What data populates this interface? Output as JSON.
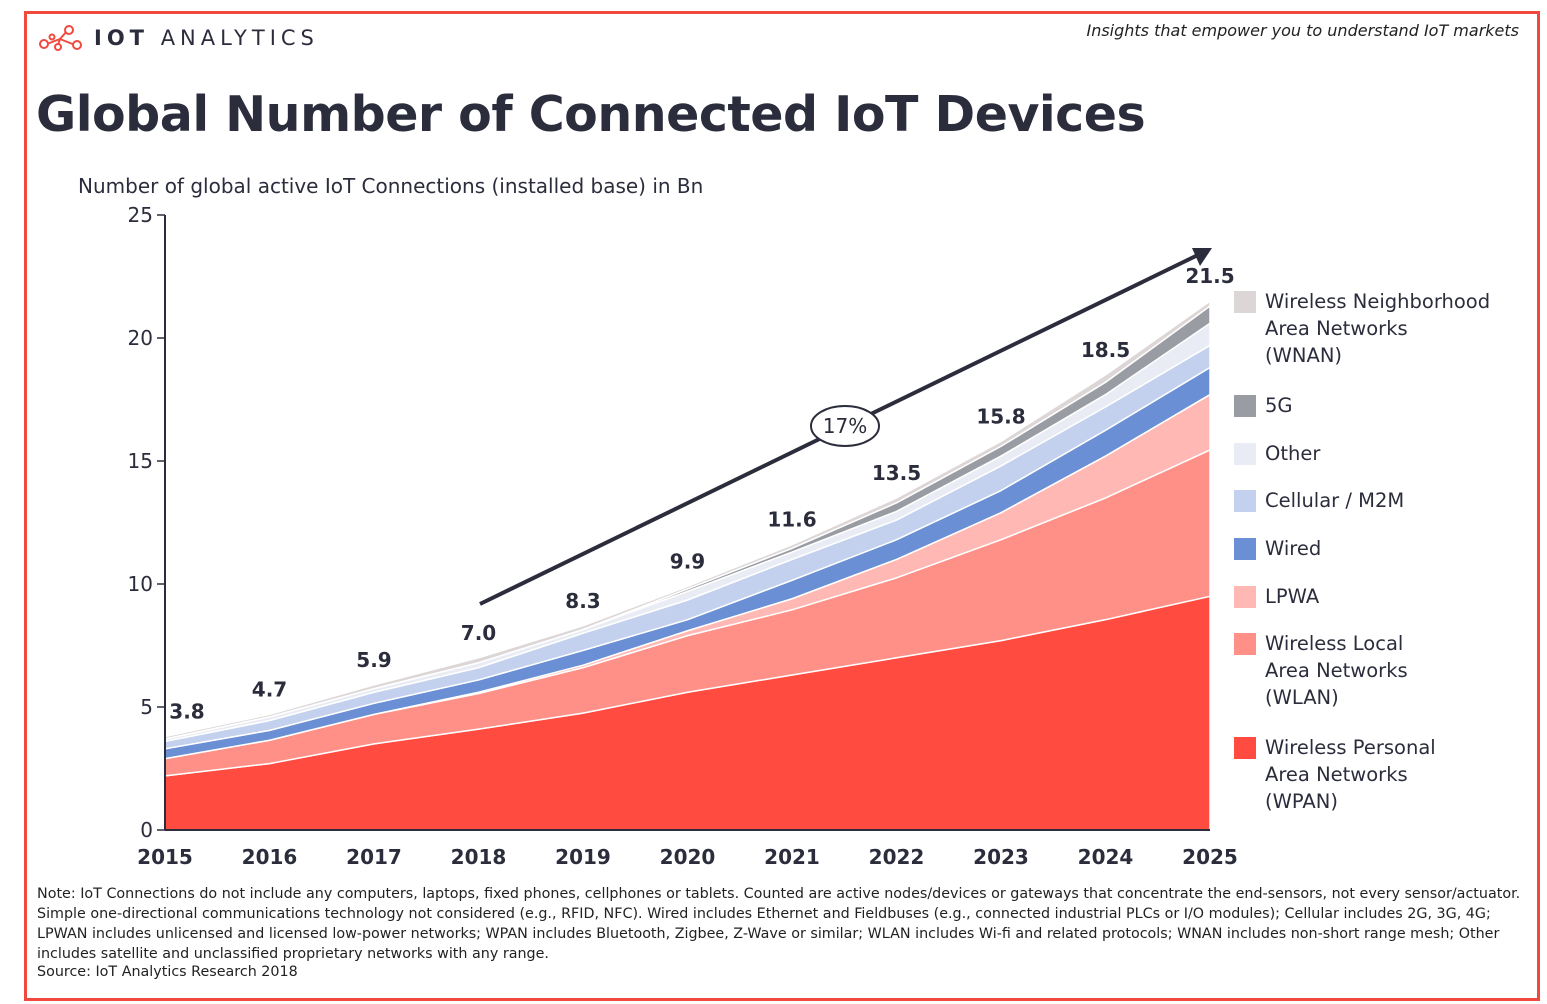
{
  "header": {
    "logo_text_bold": "IOT",
    "logo_text": "ANALYTICS",
    "tagline": "Insights that empower you to understand IoT markets"
  },
  "title": "Global Number of Connected IoT Devices",
  "subtitle": "Number of global active IoT Connections (installed base) in Bn",
  "chart_data": {
    "type": "area",
    "stacked": true,
    "title": "Global Number of Connected IoT Devices",
    "ylabel": "Number of global active IoT Connections (installed base) in Bn",
    "ylim": [
      0,
      25
    ],
    "yticks": [
      0,
      5,
      10,
      15,
      20,
      25
    ],
    "grid": false,
    "legend_placement": "right",
    "categories": [
      "2015",
      "2016",
      "2017",
      "2018",
      "2019",
      "2020",
      "2021",
      "2022",
      "2023",
      "2024",
      "2025"
    ],
    "totals": [
      3.8,
      4.7,
      5.9,
      7.0,
      8.3,
      9.9,
      11.6,
      13.5,
      15.8,
      18.5,
      21.5
    ],
    "total_labels": [
      "3.8",
      "4.7",
      "5.9",
      "7.0",
      "8.3",
      "9.9",
      "11.6",
      "13.5",
      "15.8",
      "18.5",
      "21.5"
    ],
    "cagr_annotation": "17%",
    "series": [
      {
        "name": "Wireless Personal\nArea Networks\n(WPAN)",
        "color": "#ff4b40",
        "values": [
          2.2,
          2.7,
          3.5,
          4.1,
          4.75,
          5.6,
          6.3,
          7.0,
          7.7,
          8.55,
          9.5
        ]
      },
      {
        "name": "Wireless Local\nArea Networks\n(WLAN)",
        "color": "#ff9088",
        "values": [
          0.7,
          0.95,
          1.2,
          1.45,
          1.85,
          2.3,
          2.65,
          3.25,
          4.1,
          4.95,
          5.95
        ]
      },
      {
        "name": "LPWA",
        "color": "#ffb8b3",
        "values": [
          0,
          0,
          0,
          0.05,
          0.1,
          0.2,
          0.45,
          0.75,
          1.1,
          1.7,
          2.25
        ]
      },
      {
        "name": "Wired",
        "color": "#6a8fd4",
        "values": [
          0.4,
          0.4,
          0.45,
          0.5,
          0.6,
          0.45,
          0.75,
          0.8,
          0.9,
          1.05,
          1.1
        ]
      },
      {
        "name": "Cellular / M2M",
        "color": "#c3d1ee",
        "values": [
          0.3,
          0.4,
          0.45,
          0.5,
          0.7,
          0.8,
          0.85,
          0.8,
          1.0,
          0.95,
          0.9
        ]
      },
      {
        "name": "Other",
        "color": "#e9ecf4",
        "values": [
          0.1,
          0.15,
          0.15,
          0.2,
          0.15,
          0.35,
          0.3,
          0.35,
          0.4,
          0.5,
          0.9
        ]
      },
      {
        "name": "5G",
        "color": "#999ca3",
        "values": [
          0,
          0,
          0,
          0,
          0,
          0.1,
          0.15,
          0.35,
          0.4,
          0.5,
          0.7
        ]
      },
      {
        "name": "Wireless Neighborhood\nArea Networks\n(WNAN)",
        "color": "#ddd6d6",
        "values": [
          0.1,
          0.1,
          0.15,
          0.2,
          0.15,
          0.1,
          0.15,
          0.2,
          0.2,
          0.3,
          0.2
        ]
      }
    ]
  },
  "note": "Note: IoT Connections do not include any computers, laptops, fixed phones, cellphones or tablets. Counted are active nodes/devices or gateways that concentrate the end-sensors, not every sensor/actuator. Simple one-directional communications technology not considered (e.g., RFID, NFC). Wired includes Ethernet and Fieldbuses (e.g., connected industrial PLCs or I/O modules); Cellular includes 2G, 3G, 4G;  LPWAN includes unlicensed and licensed low-power networks; WPAN includes Bluetooth, Zigbee, Z-Wave or similar; WLAN includes Wi-fi and related protocols; WNAN includes non-short range mesh; Other includes satellite and unclassified proprietary networks with any range.",
  "source": "Source: IoT Analytics Research 2018",
  "colors": {
    "frame": "#f04a3e",
    "text": "#2b2d3c"
  }
}
